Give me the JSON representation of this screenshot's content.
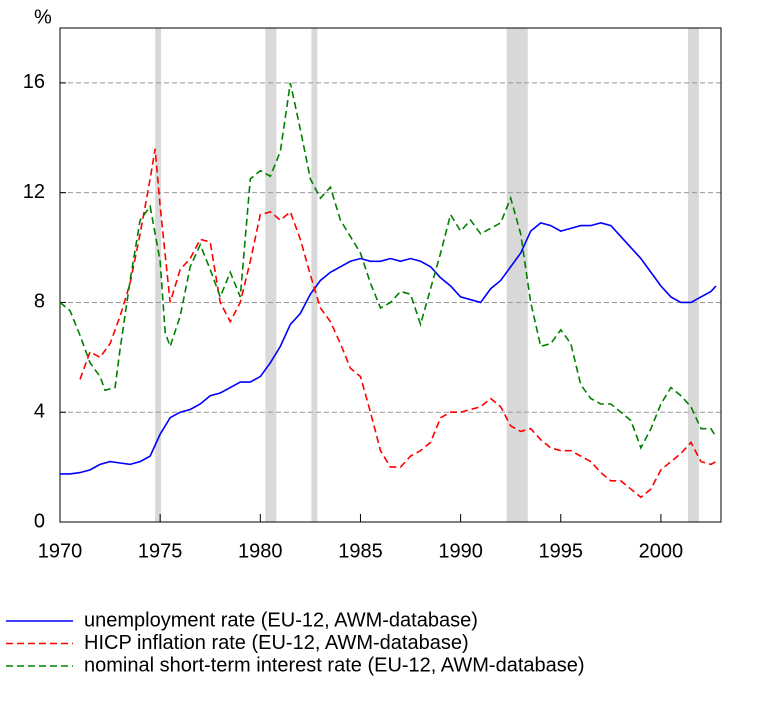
{
  "chart_data": {
    "type": "line",
    "y_label": "%",
    "xlim": [
      1970,
      2003
    ],
    "xticks": [
      1970,
      1975,
      1980,
      1985,
      1990,
      1995,
      2000
    ],
    "ylim": [
      0,
      18
    ],
    "yticks": [
      0,
      4,
      8,
      12,
      16
    ],
    "grid": true,
    "legend": "bottom",
    "shaded_periods": [
      [
        1974.75,
        1975.05
      ],
      [
        1980.25,
        1980.8
      ],
      [
        1982.55,
        1982.85
      ],
      [
        1992.3,
        1993.35
      ],
      [
        2001.35,
        2001.9
      ]
    ],
    "shade_color": "#d9d9d9",
    "series": [
      {
        "name": "unemployment rate (EU-12, AWM-database)",
        "color": "#0000ff",
        "dash": "solid",
        "x": [
          1970,
          1970.5,
          1971,
          1971.5,
          1972,
          1972.5,
          1973,
          1973.5,
          1974,
          1974.5,
          1975,
          1975.5,
          1976,
          1976.5,
          1977,
          1977.5,
          1978,
          1978.5,
          1979,
          1979.5,
          1980,
          1980.5,
          1981,
          1981.5,
          1982,
          1982.5,
          1983,
          1983.5,
          1984,
          1984.5,
          1985,
          1985.5,
          1986,
          1986.5,
          1987,
          1987.5,
          1988,
          1988.5,
          1989,
          1989.5,
          1990,
          1990.5,
          1991,
          1991.5,
          1992,
          1992.5,
          1993,
          1993.5,
          1994,
          1994.5,
          1995,
          1995.5,
          1996,
          1996.5,
          1997,
          1997.5,
          1998,
          1998.5,
          1999,
          1999.5,
          2000,
          2000.5,
          2001,
          2001.5,
          2002,
          2002.5,
          2002.75
        ],
        "values": [
          1.75,
          1.75,
          1.8,
          1.9,
          2.1,
          2.2,
          2.15,
          2.1,
          2.2,
          2.4,
          3.2,
          3.8,
          4.0,
          4.1,
          4.3,
          4.6,
          4.7,
          4.9,
          5.1,
          5.1,
          5.3,
          5.8,
          6.4,
          7.2,
          7.6,
          8.3,
          8.8,
          9.1,
          9.3,
          9.5,
          9.6,
          9.5,
          9.5,
          9.6,
          9.5,
          9.6,
          9.5,
          9.3,
          8.9,
          8.6,
          8.2,
          8.1,
          8.0,
          8.5,
          8.8,
          9.3,
          9.8,
          10.6,
          10.9,
          10.8,
          10.6,
          10.7,
          10.8,
          10.8,
          10.9,
          10.8,
          10.4,
          10.0,
          9.6,
          9.1,
          8.6,
          8.2,
          8.0,
          8.0,
          8.2,
          8.4,
          8.6
        ]
      },
      {
        "name": "HICP inflation rate (EU-12, AWM-database)",
        "color": "#ff0000",
        "dash": "dashed",
        "x": [
          1971,
          1971.5,
          1972,
          1972.5,
          1973,
          1973.5,
          1974,
          1974.5,
          1974.75,
          1975,
          1975.5,
          1976,
          1976.5,
          1977,
          1977.5,
          1978,
          1978.5,
          1979,
          1979.5,
          1980,
          1980.5,
          1981,
          1981.5,
          1982,
          1982.5,
          1983,
          1983.5,
          1984,
          1984.5,
          1985,
          1985.5,
          1986,
          1986.5,
          1987,
          1987.5,
          1988,
          1988.5,
          1989,
          1989.5,
          1990,
          1990.5,
          1991,
          1991.5,
          1992,
          1992.5,
          1993,
          1993.5,
          1994,
          1994.5,
          1995,
          1995.5,
          1996,
          1996.5,
          1997,
          1997.5,
          1998,
          1998.5,
          1999,
          1999.5,
          2000,
          2000.5,
          2001,
          2001.5,
          2002,
          2002.5,
          2002.75
        ],
        "values": [
          5.2,
          6.2,
          6.0,
          6.5,
          7.5,
          8.7,
          10.5,
          12.5,
          13.6,
          11.5,
          8.0,
          9.2,
          9.6,
          10.3,
          10.2,
          8.0,
          7.3,
          8.0,
          9.5,
          11.2,
          11.3,
          11.0,
          11.3,
          10.3,
          9.0,
          7.8,
          7.3,
          6.5,
          5.6,
          5.3,
          4.0,
          2.6,
          2.0,
          2.0,
          2.4,
          2.6,
          2.9,
          3.8,
          4.0,
          4.0,
          4.1,
          4.2,
          4.5,
          4.2,
          3.5,
          3.3,
          3.4,
          3.0,
          2.7,
          2.6,
          2.6,
          2.4,
          2.2,
          1.8,
          1.5,
          1.5,
          1.2,
          0.9,
          1.2,
          1.9,
          2.2,
          2.5,
          2.9,
          2.2,
          2.1,
          2.2
        ]
      },
      {
        "name": "nominal short-term interest rate (EU-12, AWM-database)",
        "color": "#008000",
        "dash": "dashed",
        "x": [
          1970,
          1970.5,
          1971,
          1971.5,
          1972,
          1972.25,
          1972.75,
          1973,
          1973.5,
          1974,
          1974.5,
          1975,
          1975.25,
          1975.5,
          1976,
          1976.5,
          1977,
          1977.5,
          1978,
          1978.5,
          1979,
          1979.5,
          1980,
          1980.5,
          1981,
          1981.5,
          1982,
          1982.5,
          1983,
          1983.5,
          1984,
          1984.5,
          1985,
          1985.5,
          1986,
          1986.5,
          1987,
          1987.5,
          1988,
          1988.5,
          1989,
          1989.5,
          1990,
          1990.5,
          1991,
          1991.5,
          1992,
          1992.5,
          1993,
          1993.5,
          1994,
          1994.5,
          1995,
          1995.5,
          1996,
          1996.5,
          1997,
          1997.5,
          1998,
          1998.5,
          1999,
          1999.5,
          2000,
          2000.5,
          2001,
          2001.5,
          2002,
          2002.5,
          2002.75
        ],
        "values": [
          8.0,
          7.7,
          6.8,
          5.8,
          5.3,
          4.8,
          4.9,
          6.3,
          8.8,
          11.0,
          11.5,
          9.5,
          6.9,
          6.4,
          7.5,
          9.3,
          10.1,
          9.2,
          8.2,
          9.1,
          8.2,
          12.5,
          12.8,
          12.6,
          13.5,
          16.0,
          14.3,
          12.5,
          11.8,
          12.2,
          11.0,
          10.4,
          9.8,
          8.7,
          7.8,
          8.0,
          8.4,
          8.3,
          7.2,
          8.5,
          9.8,
          11.2,
          10.6,
          11.0,
          10.5,
          10.7,
          10.9,
          11.8,
          10.5,
          8.0,
          6.4,
          6.5,
          7.0,
          6.5,
          5.0,
          4.5,
          4.3,
          4.3,
          4.0,
          3.7,
          2.7,
          3.4,
          4.3,
          4.9,
          4.6,
          4.2,
          3.4,
          3.4,
          3.1
        ]
      }
    ]
  }
}
